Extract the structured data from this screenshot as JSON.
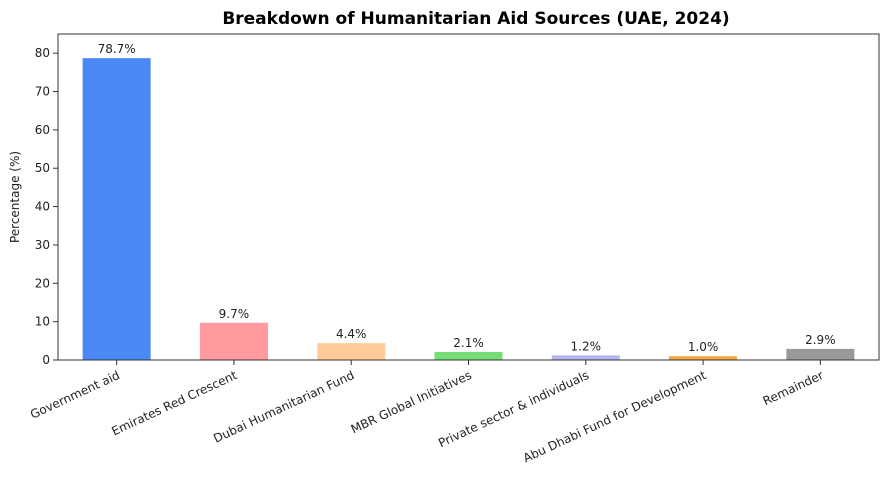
{
  "chart_data": {
    "type": "bar",
    "title": "Breakdown of Humanitarian Aid Sources (UAE, 2024)",
    "xlabel": "",
    "ylabel": "Percentage (%)",
    "ylim": [
      0,
      85
    ],
    "yticks": [
      0,
      10,
      20,
      30,
      40,
      50,
      60,
      70,
      80
    ],
    "grid": false,
    "categories": [
      "Government aid",
      "Emirates Red Crescent",
      "Dubai Humanitarian Fund",
      "MBR Global Initiatives",
      "Private sector & individuals",
      "Abu Dhabi Fund for Development",
      "Remainder"
    ],
    "values": [
      78.7,
      9.7,
      4.4,
      2.1,
      1.2,
      1.0,
      2.9
    ],
    "data_labels": [
      "78.7%",
      "9.7%",
      "4.4%",
      "2.1%",
      "1.2%",
      "1.0%",
      "2.9%"
    ],
    "colors": [
      "#4a89f5",
      "#ff9a9e",
      "#ffcc99",
      "#77dd77",
      "#b4b4ee",
      "#f5a742",
      "#999999"
    ]
  }
}
